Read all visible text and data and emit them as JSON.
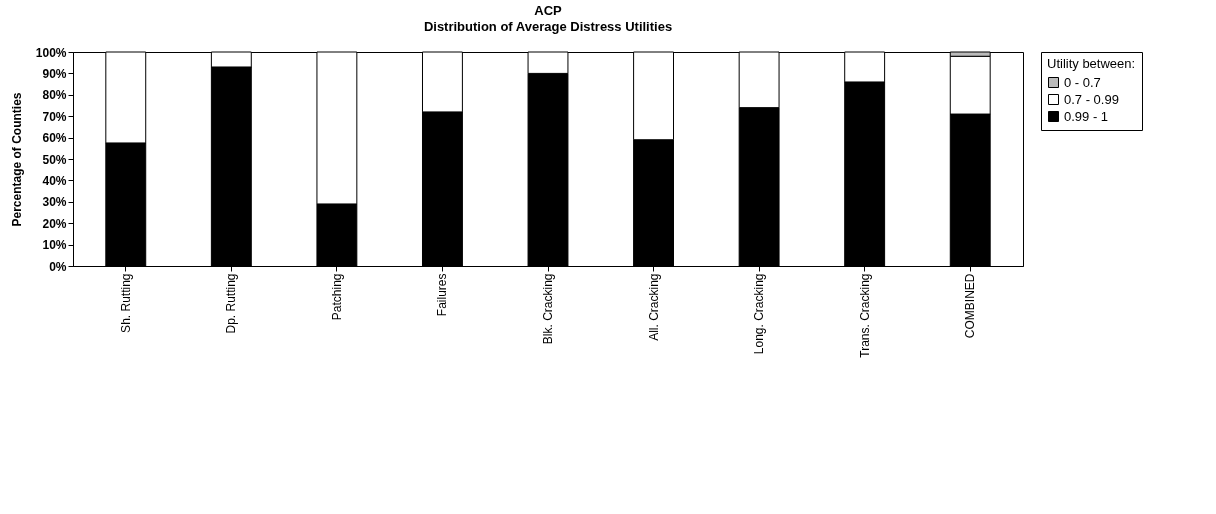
{
  "chart_data": {
    "type": "bar",
    "title": "ACP",
    "subtitle": "Distribution of Average Distress Utilities",
    "ylabel": "Percentage of Counties",
    "legend_title": "Utility between:",
    "categories": [
      "Sh. Rutting",
      "Dp. Rutting",
      "Patching",
      "Failures",
      "Blk. Cracking",
      "All. Cracking",
      "Long. Cracking",
      "Trans. Cracking",
      "COMBINED"
    ],
    "stacked": true,
    "series": [
      {
        "name": "0.99 - 1",
        "color": "#000000",
        "values": [
          57.5,
          93,
          29,
          72,
          90,
          59,
          74,
          86,
          71
        ]
      },
      {
        "name": "0.7 - 0.99",
        "color": "#ffffff",
        "values": [
          42.5,
          7,
          71,
          28,
          10,
          41,
          26,
          14,
          27
        ]
      },
      {
        "name": "0 - 0.7",
        "color": "#bbbbbb",
        "values": [
          null,
          null,
          null,
          null,
          null,
          null,
          null,
          null,
          2
        ]
      }
    ],
    "ylim": [
      0,
      100
    ],
    "yticks": [
      {
        "value": 0,
        "label": "0%"
      },
      {
        "value": 10,
        "label": "10%"
      },
      {
        "value": 20,
        "label": "20%"
      },
      {
        "value": 30,
        "label": "30%"
      },
      {
        "value": 40,
        "label": "40%"
      },
      {
        "value": 50,
        "label": "50%"
      },
      {
        "value": 60,
        "label": "60%"
      },
      {
        "value": 70,
        "label": "70%"
      },
      {
        "value": 80,
        "label": "80%"
      },
      {
        "value": 90,
        "label": "90%"
      },
      {
        "value": 100,
        "label": "100%"
      }
    ],
    "grid": false,
    "legend": "right"
  }
}
